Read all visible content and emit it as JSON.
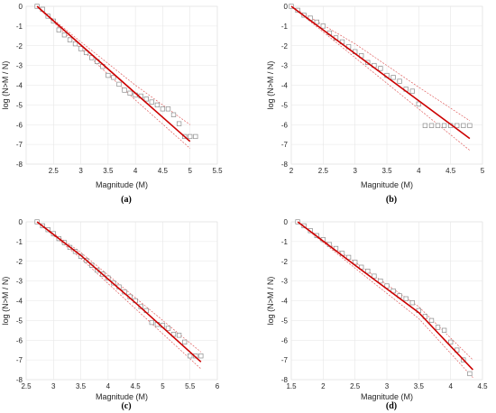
{
  "chart_data": [
    {
      "id": "a",
      "type": "scatter",
      "caption": "(a)",
      "xlabel": "Magnitude (M)",
      "ylabel": "log (N>M / N)",
      "xlim": [
        2,
        5.5
      ],
      "ylim": [
        -8,
        0
      ],
      "xticks": [
        2.5,
        3,
        3.5,
        4,
        4.5,
        5,
        5.5
      ],
      "yticks": [
        0,
        -1,
        -2,
        -3,
        -4,
        -5,
        -6,
        -7,
        -8
      ],
      "grid": true,
      "observed": {
        "x": [
          2.2,
          2.3,
          2.4,
          2.5,
          2.6,
          2.7,
          2.8,
          2.9,
          3.0,
          3.1,
          3.2,
          3.3,
          3.4,
          3.5,
          3.6,
          3.7,
          3.8,
          3.9,
          4.0,
          4.1,
          4.2,
          4.3,
          4.4,
          4.5,
          4.6,
          4.7,
          4.8,
          4.9,
          5.0,
          5.1
        ],
        "y": [
          0,
          -0.15,
          -0.5,
          -0.75,
          -1.2,
          -1.45,
          -1.7,
          -1.9,
          -2.15,
          -2.35,
          -2.6,
          -2.8,
          -3.05,
          -3.5,
          -3.6,
          -3.95,
          -4.25,
          -4.4,
          -4.5,
          -4.55,
          -4.7,
          -4.85,
          -5.0,
          -5.2,
          -5.2,
          -5.5,
          -5.95,
          -6.6,
          -6.6,
          -6.6
        ]
      },
      "fit": {
        "x": [
          2.2,
          5.0
        ],
        "y": [
          0,
          -6.85
        ]
      },
      "ci_upper": {
        "x": [
          2.2,
          3.0,
          4.0,
          5.0
        ],
        "y": [
          0,
          -1.8,
          -4.0,
          -6.0
        ]
      },
      "ci_lower": {
        "x": [
          2.2,
          3.0,
          4.0,
          5.0
        ],
        "y": [
          0,
          -2.15,
          -4.75,
          -7.2
        ]
      }
    },
    {
      "id": "b",
      "type": "scatter",
      "caption": "(b)",
      "xlabel": "Magnitude (M)",
      "ylabel": "log (N>M / N)",
      "xlim": [
        2,
        5
      ],
      "ylim": [
        -8,
        0
      ],
      "xticks": [
        2,
        2.5,
        3,
        3.5,
        4,
        4.5,
        5
      ],
      "yticks": [
        0,
        -1,
        -2,
        -3,
        -4,
        -5,
        -6,
        -7,
        -8
      ],
      "grid": true,
      "observed": {
        "x": [
          2.0,
          2.1,
          2.2,
          2.3,
          2.4,
          2.5,
          2.6,
          2.7,
          2.8,
          2.9,
          3.0,
          3.1,
          3.2,
          3.3,
          3.4,
          3.5,
          3.6,
          3.7,
          3.8,
          3.9,
          4.0,
          4.1,
          4.2,
          4.3,
          4.4,
          4.5,
          4.6,
          4.7,
          4.8
        ],
        "y": [
          0,
          -0.2,
          -0.45,
          -0.6,
          -0.8,
          -1.0,
          -1.35,
          -1.6,
          -1.8,
          -2.05,
          -2.3,
          -2.5,
          -2.85,
          -3.0,
          -3.15,
          -3.5,
          -3.6,
          -3.8,
          -4.2,
          -4.3,
          -4.95,
          -6.05,
          -6.05,
          -6.05,
          -6.05,
          -6.05,
          -6.05,
          -6.05,
          -6.05
        ]
      },
      "fit": {
        "x": [
          2.0,
          4.8
        ],
        "y": [
          0,
          -6.7
        ]
      },
      "ci_upper": {
        "x": [
          2.0,
          3.0,
          4.0,
          4.8
        ],
        "y": [
          0,
          -1.9,
          -4.1,
          -5.8
        ]
      },
      "ci_lower": {
        "x": [
          2.0,
          3.0,
          4.0,
          4.8
        ],
        "y": [
          0,
          -2.6,
          -5.2,
          -7.3
        ]
      }
    },
    {
      "id": "c",
      "type": "scatter",
      "caption": "(c)",
      "xlabel": "Magnitude (M)",
      "ylabel": "log (N>M / N)",
      "xlim": [
        2.5,
        6
      ],
      "ylim": [
        -8,
        0
      ],
      "xticks": [
        2.5,
        3,
        3.5,
        4,
        4.5,
        5,
        5.5,
        6
      ],
      "yticks": [
        0,
        -1,
        -2,
        -3,
        -4,
        -5,
        -6,
        -7,
        -8
      ],
      "grid": true,
      "observed": {
        "x": [
          2.7,
          2.8,
          2.9,
          3.0,
          3.1,
          3.2,
          3.3,
          3.4,
          3.5,
          3.6,
          3.7,
          3.8,
          3.9,
          4.0,
          4.1,
          4.2,
          4.3,
          4.4,
          4.5,
          4.6,
          4.7,
          4.8,
          4.9,
          5.0,
          5.1,
          5.2,
          5.3,
          5.4,
          5.5,
          5.6,
          5.7
        ],
        "y": [
          0,
          -0.2,
          -0.4,
          -0.6,
          -0.85,
          -1.05,
          -1.3,
          -1.5,
          -1.75,
          -1.95,
          -2.2,
          -2.45,
          -2.65,
          -2.85,
          -3.1,
          -3.3,
          -3.55,
          -3.8,
          -4.0,
          -4.3,
          -4.5,
          -5.1,
          -5.2,
          -5.25,
          -5.4,
          -5.7,
          -5.75,
          -6.1,
          -6.8,
          -6.8,
          -6.8
        ]
      },
      "fit": {
        "x": [
          2.7,
          3.5,
          4.5,
          5.7
        ],
        "y": [
          0,
          -1.7,
          -4.1,
          -7.1
        ]
      },
      "ci_upper": {
        "x": [
          2.7,
          3.5,
          4.5,
          5.7
        ],
        "y": [
          0,
          -1.55,
          -3.85,
          -6.6
        ]
      },
      "ci_lower": {
        "x": [
          2.7,
          3.5,
          4.5,
          5.7
        ],
        "y": [
          0,
          -1.85,
          -4.4,
          -7.45
        ]
      }
    },
    {
      "id": "d",
      "type": "scatter",
      "caption": "(d)",
      "xlabel": "Magnitude (M)",
      "ylabel": "log (N>M / N)",
      "xlim": [
        1.5,
        4.5
      ],
      "ylim": [
        -8,
        0
      ],
      "xticks": [
        1.5,
        2,
        2.5,
        3,
        3.5,
        4,
        4.5
      ],
      "yticks": [
        0,
        -1,
        -2,
        -3,
        -4,
        -5,
        -6,
        -7,
        -8
      ],
      "grid": true,
      "observed": {
        "x": [
          1.6,
          1.7,
          1.8,
          1.9,
          2.0,
          2.1,
          2.2,
          2.3,
          2.4,
          2.5,
          2.6,
          2.7,
          2.8,
          2.9,
          3.0,
          3.1,
          3.2,
          3.3,
          3.4,
          3.5,
          3.6,
          3.7,
          3.8,
          3.9,
          4.0,
          4.1,
          4.2,
          4.3
        ],
        "y": [
          0,
          -0.2,
          -0.45,
          -0.7,
          -0.9,
          -1.15,
          -1.35,
          -1.6,
          -1.8,
          -2.05,
          -2.3,
          -2.5,
          -2.75,
          -3.0,
          -3.25,
          -3.5,
          -3.75,
          -3.9,
          -4.1,
          -4.5,
          -4.8,
          -5.0,
          -5.35,
          -5.5,
          -6.1,
          -6.5,
          -7.0,
          -7.7
        ]
      },
      "fit": {
        "x": [
          1.6,
          2.5,
          3.5,
          4.35
        ],
        "y": [
          0,
          -2.2,
          -4.6,
          -7.5
        ]
      },
      "ci_upper": {
        "x": [
          1.6,
          2.5,
          3.5,
          4.35
        ],
        "y": [
          0,
          -2.05,
          -4.3,
          -7.0
        ]
      },
      "ci_lower": {
        "x": [
          1.6,
          2.5,
          3.5,
          4.35
        ],
        "y": [
          0,
          -2.35,
          -4.9,
          -7.9
        ]
      }
    }
  ]
}
